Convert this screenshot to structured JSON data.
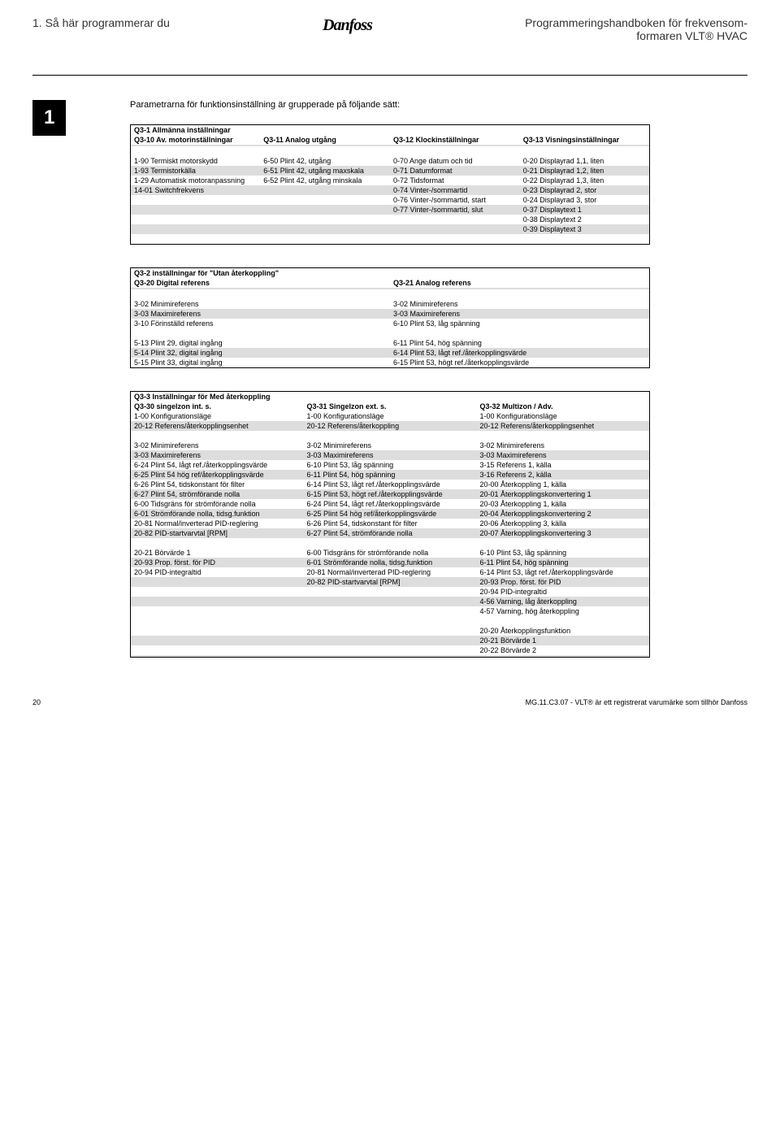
{
  "header": {
    "left": "1.  Så här programmerar du",
    "logo": "Danfoss",
    "right_line1": "Programmeringshandboken för frekvensom-",
    "right_line2": "formaren VLT® HVAC"
  },
  "chapter": "1",
  "intro": "Parametrarna för funktionsinställning är grupperade på följande sätt:",
  "table1": {
    "title": "Q3-1 Allmänna inställningar",
    "headers": [
      "Q3-10 Av. motorinställningar",
      "Q3-11 Analog utgång",
      "Q3-12 Klockinställningar",
      "Q3-13 Visningsinställningar"
    ],
    "rows": [
      [
        "1-90 Termiskt motorskydd",
        "6-50 Plint 42, utgång",
        "0-70 Ange datum och tid",
        "0-20 Displayrad 1,1, liten"
      ],
      [
        "1-93 Termistorkälla",
        "6-51 Plint 42, utgång maxskala",
        "0-71 Datumformat",
        "0-21 Displayrad 1,2, liten"
      ],
      [
        "1-29 Automatisk motoranpassning",
        "6-52 Plint 42, utgång minskala",
        "0-72 Tidsformat",
        "0-22 Displayrad 1,3, liten"
      ],
      [
        "14-01 Switchfrekvens",
        "",
        "0-74 Vinter-/sommartid",
        "0-23 Displayrad 2, stor"
      ],
      [
        "",
        "",
        "0-76 Vinter-/sommartid, start",
        "0-24 Displayrad 3, stor"
      ],
      [
        "",
        "",
        "0-77 Vinter-/sommartid, slut",
        "0-37 Displaytext 1"
      ],
      [
        "",
        "",
        "",
        "0-38 Displaytext 2"
      ],
      [
        "",
        "",
        "",
        "0-39 Displaytext 3"
      ]
    ],
    "shades": [
      false,
      true,
      false,
      true,
      false,
      true,
      false,
      true
    ]
  },
  "table2": {
    "title": "Q3-2 inställningar för \"Utan återkoppling\"",
    "headers": [
      "Q3-20 Digital referens",
      "Q3-21 Analog referens"
    ],
    "groups": [
      [
        [
          "3-02 Minimireferens",
          "3-02 Minimireferens"
        ],
        [
          "3-03 Maximireferens",
          "3-03 Maximireferens"
        ],
        [
          "3-10 Förinställd referens",
          "6-10 Plint 53, låg spänning"
        ]
      ],
      [
        [
          "5-13 Plint 29, digital ingång",
          "6-11 Plint 54, hög spänning"
        ],
        [
          "5-14 Plint 32, digital ingång",
          "6-14 Plint 53, lågt ref./återkopplingsvärde"
        ],
        [
          "5-15 Plint 33, digital ingång",
          "6-15 Plint 53, högt ref./återkopplingsvärde"
        ]
      ]
    ],
    "shades": [
      [
        false,
        true,
        false
      ],
      [
        false,
        true,
        false
      ]
    ]
  },
  "table3": {
    "title": "Q3-3 Inställningar för Med återkoppling",
    "headers": [
      "Q3-30 singelzon int. s.",
      "Q3-31 Singelzon ext. s.",
      "Q3-32 Multizon / Adv."
    ],
    "groups": [
      [
        [
          "1-00 Konfigurationsläge",
          "1-00 Konfigurationsläge",
          "1-00 Konfigurationsläge"
        ],
        [
          "20-12 Referens/återkopplingsenhet",
          "20-12 Referens/återkoppling",
          "20-12 Referens/återkopplingsenhet"
        ]
      ],
      [
        [
          "3-02 Minimireferens",
          "3-02 Minimireferens",
          "3-02 Minimireferens"
        ],
        [
          "3-03 Maximireferens",
          "3-03 Maximireferens",
          "3-03 Maximireferens"
        ],
        [
          "6-24 Plint 54, lågt ref./återkopplingsvärde",
          "6-10 Plint 53, låg spänning",
          "3-15 Referens 1, källa"
        ],
        [
          "6-25 Plint 54 hög ref/återkopplingsvärde",
          "6-11 Plint 54, hög spänning",
          "3-16 Referens 2, källa"
        ],
        [
          "6-26 Plint 54, tidskonstant för filter",
          "6-14 Plint 53, lågt ref./återkopplingsvärde",
          "20-00 Återkoppling 1, källa"
        ],
        [
          "6-27 Plint 54, strömförande nolla",
          "6-15 Plint 53, högt ref./återkopplingsvärde",
          "20-01 Återkopplingskonvertering 1"
        ],
        [
          "6-00 Tidsgräns för strömförande nolla",
          "6-24 Plint 54, lågt ref./återkopplingsvärde",
          "20-03 Återkoppling 1, källa"
        ],
        [
          "6-01 Strömförande nolla, tidsg.funktion",
          "6-25 Plint 54 hög ref/återkopplingsvärde",
          "20-04 Återkopplingskonvertering 2"
        ],
        [
          "20-81 Normal/inverterad PID-reglering",
          "6-26 Plint 54, tidskonstant för filter",
          "20-06 Återkoppling 3, källa"
        ],
        [
          "20-82 PID-startvarvtal [RPM]",
          "6-27 Plint 54, strömförande nolla",
          "20-07 Återkopplingskonvertering 3"
        ]
      ],
      [
        [
          "20-21 Börvärde 1",
          "6-00 Tidsgräns för strömförande nolla",
          "6-10 Plint 53, låg spänning"
        ],
        [
          "20-93 Prop. först. för PID",
          "6-01 Strömförande nolla, tidsg.funktion",
          "6-11 Plint 54, hög spänning"
        ],
        [
          "20-94 PID-integraltid",
          "20-81 Normal/inverterad PID-reglering",
          "6-14 Plint 53, lågt ref./återkopplingsvärde"
        ],
        [
          "",
          "20-82 PID-startvarvtal [RPM]",
          "20-93 Prop. först. för PID"
        ],
        [
          "",
          "",
          "20-94 PID-integraltid"
        ],
        [
          "",
          "",
          "4-56 Varning, låg återkoppling"
        ],
        [
          "",
          "",
          "4-57 Varning, hög återkoppling"
        ]
      ],
      [
        [
          "",
          "",
          "20-20 Återkopplingsfunktion"
        ],
        [
          "",
          "",
          "20-21 Börvärde 1"
        ],
        [
          "",
          "",
          "20-22 Börvärde 2"
        ]
      ]
    ],
    "shades": [
      [
        false,
        true
      ],
      [
        false,
        true,
        false,
        true,
        false,
        true,
        false,
        true,
        false,
        true
      ],
      [
        false,
        true,
        false,
        true,
        false,
        true,
        false
      ],
      [
        false,
        true,
        false
      ]
    ]
  },
  "footer": {
    "page": "20",
    "text": "MG.11.C3.07 - VLT® är ett registrerat varumärke som tillhör Danfoss"
  }
}
